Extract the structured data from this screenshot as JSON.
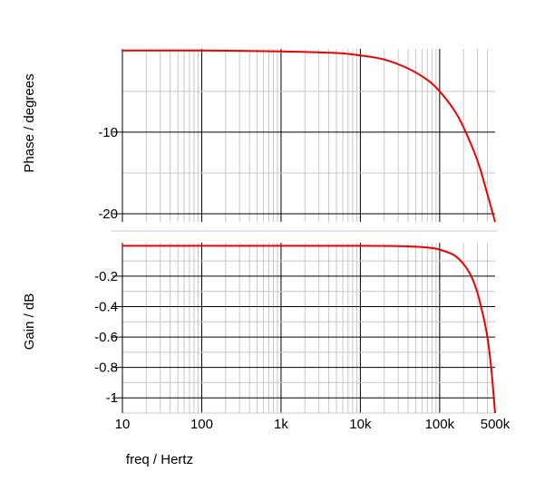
{
  "chart_data": [
    {
      "type": "line",
      "ylabel": "Phase / degrees",
      "xscale": "log",
      "xlim": [
        10,
        500000
      ],
      "ylim": [
        -21,
        0.2
      ],
      "yticks": [
        -10,
        -20
      ],
      "ytick_labels": [
        "-10",
        "-20"
      ],
      "grid": true,
      "series": [
        {
          "color": "#ee0000",
          "x": [
            10,
            100,
            1000,
            5000,
            10000,
            20000,
            40000,
            70000,
            100000,
            150000,
            200000,
            300000,
            400000,
            500000
          ],
          "y": [
            0,
            0,
            -0.1,
            -0.3,
            -0.6,
            -1.1,
            -2.2,
            -3.6,
            -5.0,
            -7.2,
            -9.4,
            -13.5,
            -17.6,
            -21.0
          ]
        }
      ]
    },
    {
      "type": "line",
      "xlabel": "freq / Hertz",
      "ylabel": "Gain / dB",
      "xscale": "log",
      "xlim": [
        10,
        500000
      ],
      "ylim": [
        -1.1,
        0.02
      ],
      "xticks": [
        10,
        100,
        1000,
        10000,
        100000,
        500000
      ],
      "xtick_labels": [
        "10",
        "100",
        "1k",
        "10k",
        "100k",
        "500k"
      ],
      "yticks": [
        -0.2,
        -0.4,
        -0.6,
        -0.8,
        -1
      ],
      "ytick_labels": [
        "-0.2",
        "-0.4",
        "-0.6",
        "-0.8",
        "-1"
      ],
      "grid": true,
      "series": [
        {
          "color": "#ee0000",
          "x": [
            10,
            100,
            1000,
            10000,
            30000,
            50000,
            80000,
            100000,
            150000,
            200000,
            250000,
            300000,
            350000,
            400000,
            450000,
            500000
          ],
          "y": [
            0,
            0,
            0,
            0,
            -0.002,
            -0.006,
            -0.015,
            -0.025,
            -0.06,
            -0.12,
            -0.2,
            -0.31,
            -0.45,
            -0.6,
            -0.82,
            -1.1
          ]
        }
      ]
    }
  ]
}
